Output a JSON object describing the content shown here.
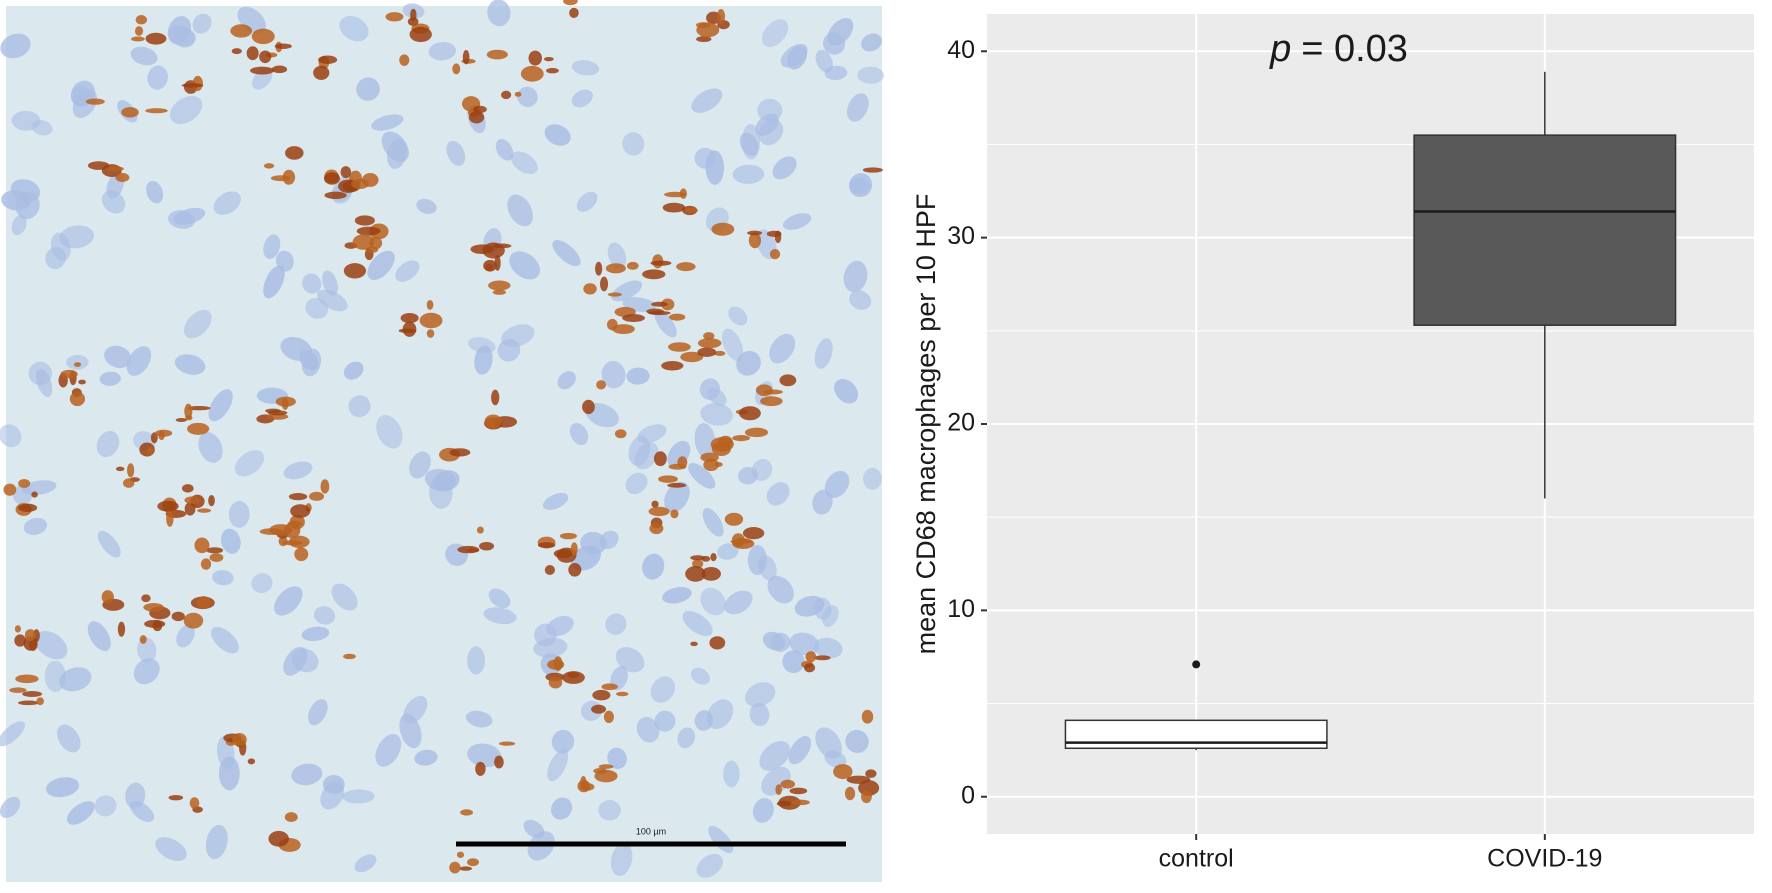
{
  "image": {
    "scale_bar_label": "100 µm"
  },
  "chart_data": {
    "type": "box",
    "annotation": [
      "p",
      "= 0.03"
    ],
    "y_label": "mean CD68 macrophages per 10 HPF",
    "categories": [
      "control",
      "COVID-19"
    ],
    "boxes": [
      {
        "min": 2.5,
        "q1": 2.6,
        "median": 2.9,
        "q3": 4.1,
        "max": 4.1,
        "outliers": [
          7.1
        ],
        "color": "#ffffff"
      },
      {
        "min": 16,
        "q1": 25.3,
        "median": 31.4,
        "q3": 35.5,
        "max": 38.9,
        "outliers": [],
        "color": "#595959"
      }
    ],
    "ylim": [
      -2,
      42
    ],
    "yticks": [
      0,
      10,
      20,
      30,
      40
    ],
    "minor_yticks": [
      5,
      15,
      25,
      35
    ],
    "grid": true
  }
}
